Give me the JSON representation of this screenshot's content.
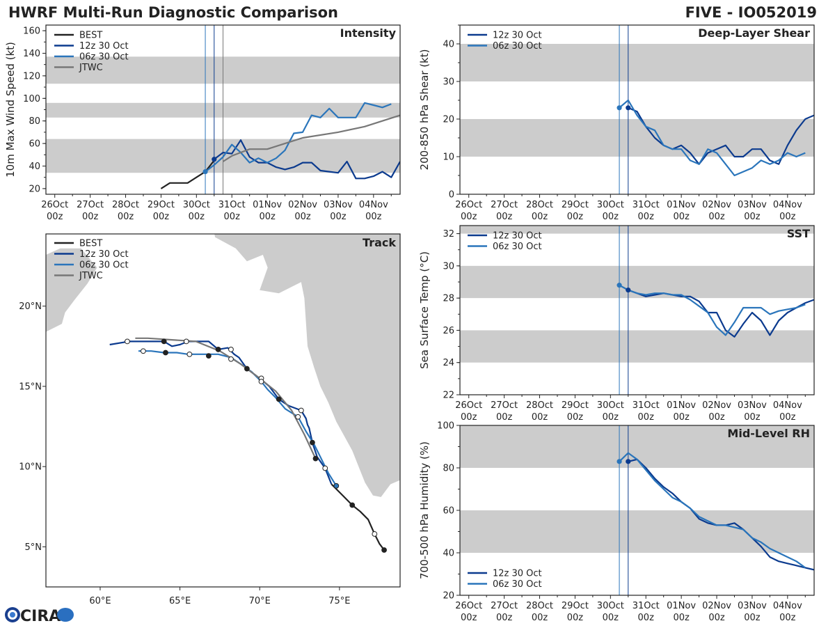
{
  "header": {
    "title": "HWRF Multi-Run Diagnostic Comparison",
    "storm": "FIVE - IO052019"
  },
  "colors": {
    "best": "#222222",
    "run12": "#0b3a8e",
    "run06": "#2a75bb",
    "jtwc": "#777777",
    "band": "#cccccc",
    "land": "#cccccc"
  },
  "logo": {
    "text": "CIRA"
  },
  "time_ticks": [
    "26Oct\n00z",
    "27Oct\n00z",
    "28Oct\n00z",
    "29Oct\n00z",
    "30Oct\n00z",
    "31Oct\n00z",
    "01Nov\n00z",
    "02Nov\n00z",
    "03Nov\n00z",
    "04Nov\n00z"
  ],
  "chart_data": [
    {
      "id": "intensity",
      "type": "line",
      "title": "Intensity",
      "ylabel": "10m Max Wind Speed (kt)",
      "xlabel": "",
      "ylim": [
        15,
        165
      ],
      "yticks": [
        20,
        40,
        60,
        80,
        100,
        120,
        140,
        160
      ],
      "xlim_days": [
        -0.25,
        9.75
      ],
      "bands": [
        [
          34,
          64
        ],
        [
          83,
          96
        ],
        [
          113,
          137
        ]
      ],
      "vlines": [
        {
          "day": 4.25,
          "series": "06z 30 Oct"
        },
        {
          "day": 4.5,
          "series": "12z 30 Oct"
        },
        {
          "day": 4.75,
          "series": "JTWC"
        }
      ],
      "legend": [
        "BEST",
        "12z 30 Oct",
        "06z 30 Oct",
        "JTWC"
      ],
      "series": [
        {
          "name": "BEST",
          "x": [
            3.0,
            3.25,
            3.5,
            3.75,
            4.0,
            4.25,
            4.5
          ],
          "y": [
            20,
            25,
            25,
            25,
            30,
            35,
            45
          ]
        },
        {
          "name": "12z 30 Oct",
          "x": [
            4.5,
            4.75,
            5.0,
            5.25,
            5.5,
            5.75,
            6.0,
            6.25,
            6.5,
            6.75,
            7.0,
            7.25,
            7.5,
            7.75,
            8.0,
            8.25,
            8.5,
            8.75,
            9.0,
            9.25,
            9.5,
            9.75
          ],
          "y": [
            46,
            52,
            51,
            63,
            48,
            43,
            43,
            39,
            37,
            39,
            43,
            43,
            36,
            35,
            34,
            44,
            29,
            29,
            31,
            35,
            30,
            44
          ]
        },
        {
          "name": "06z 30 Oct",
          "x": [
            4.25,
            4.5,
            4.75,
            5.0,
            5.25,
            5.5,
            5.75,
            6.0,
            6.25,
            6.5,
            6.75,
            7.0,
            7.25,
            7.5,
            7.75,
            8.0,
            8.25,
            8.5,
            8.75,
            9.0,
            9.25,
            9.5
          ],
          "y": [
            35,
            41,
            48,
            59,
            52,
            43,
            47,
            43,
            47,
            54,
            69,
            70,
            85,
            83,
            91,
            83,
            83,
            83,
            96,
            94,
            92,
            95
          ]
        },
        {
          "name": "JTWC",
          "x": [
            4.75,
            5.0,
            5.5,
            6.0,
            6.5,
            7.0,
            8.0,
            8.75,
            9.25,
            9.75
          ],
          "y": [
            44,
            49,
            55,
            55,
            60,
            65,
            70,
            75,
            80,
            85
          ]
        }
      ]
    },
    {
      "id": "shear",
      "type": "line",
      "title": "Deep-Layer Shear",
      "ylabel": "200-850 hPa Shear (kt)",
      "xlabel": "",
      "ylim": [
        0,
        45
      ],
      "yticks": [
        0,
        10,
        20,
        30,
        40
      ],
      "xlim_days": [
        -0.25,
        9.75
      ],
      "bands": [
        [
          10,
          20
        ],
        [
          30,
          40
        ]
      ],
      "vlines": [
        {
          "day": 4.25,
          "series": "06z 30 Oct"
        },
        {
          "day": 4.5,
          "series": "12z 30 Oct"
        }
      ],
      "legend": [
        "12z 30 Oct",
        "06z 30 Oct"
      ],
      "series": [
        {
          "name": "12z 30 Oct",
          "x": [
            4.5,
            4.75,
            5.0,
            5.25,
            5.5,
            5.75,
            6.0,
            6.25,
            6.5,
            6.75,
            7.0,
            7.25,
            7.5,
            7.75,
            8.0,
            8.25,
            8.5,
            8.75,
            9.0,
            9.25,
            9.5,
            9.75
          ],
          "y": [
            23,
            22,
            18,
            15,
            13,
            12,
            13,
            11,
            8,
            11,
            12,
            13,
            10,
            10,
            12,
            12,
            9,
            8,
            13,
            17,
            20,
            21
          ]
        },
        {
          "name": "06z 30 Oct",
          "x": [
            4.25,
            4.5,
            4.75,
            5.0,
            5.25,
            5.5,
            5.75,
            6.0,
            6.25,
            6.5,
            6.75,
            7.0,
            7.25,
            7.5,
            7.75,
            8.0,
            8.25,
            8.5,
            8.75,
            9.0,
            9.25,
            9.5
          ],
          "y": [
            23,
            25,
            21,
            18,
            17,
            13,
            12,
            12,
            9,
            8,
            12,
            11,
            8,
            5,
            6,
            7,
            9,
            8,
            9,
            11,
            10,
            11
          ]
        }
      ]
    },
    {
      "id": "sst",
      "type": "line",
      "title": "SST",
      "ylabel": "Sea Surface Temp (°C)",
      "xlabel": "",
      "ylim": [
        22,
        32.5
      ],
      "yticks": [
        22,
        24,
        26,
        28,
        30,
        32
      ],
      "xlim_days": [
        -0.25,
        9.75
      ],
      "bands": [
        [
          24,
          26
        ],
        [
          28,
          30
        ],
        [
          32,
          32.5
        ]
      ],
      "vlines": [
        {
          "day": 4.25,
          "series": "06z 30 Oct"
        },
        {
          "day": 4.5,
          "series": "12z 30 Oct"
        }
      ],
      "legend": [
        "12z 30 Oct",
        "06z 30 Oct"
      ],
      "series": [
        {
          "name": "12z 30 Oct",
          "x": [
            4.5,
            4.75,
            5.0,
            5.25,
            5.5,
            5.75,
            6.0,
            6.25,
            6.5,
            6.75,
            7.0,
            7.25,
            7.5,
            7.75,
            8.0,
            8.25,
            8.5,
            8.75,
            9.0,
            9.25,
            9.5,
            9.75
          ],
          "y": [
            28.5,
            28.3,
            28.1,
            28.2,
            28.3,
            28.2,
            28.1,
            28.1,
            27.8,
            27.1,
            27.1,
            26.0,
            25.6,
            26.4,
            27.1,
            26.6,
            25.7,
            26.6,
            27.1,
            27.4,
            27.7,
            27.9
          ]
        },
        {
          "name": "06z 30 Oct",
          "x": [
            4.25,
            4.5,
            4.75,
            5.0,
            5.25,
            5.5,
            5.75,
            6.0,
            6.25,
            6.5,
            6.75,
            7.0,
            7.25,
            7.5,
            7.75,
            8.0,
            8.25,
            8.5,
            8.75,
            9.0,
            9.25,
            9.5
          ],
          "y": [
            28.8,
            28.5,
            28.3,
            28.2,
            28.3,
            28.3,
            28.2,
            28.2,
            27.9,
            27.5,
            27.1,
            26.2,
            25.7,
            26.5,
            27.4,
            27.4,
            27.4,
            27.0,
            27.2,
            27.3,
            27.4,
            27.6
          ]
        }
      ]
    },
    {
      "id": "rh",
      "type": "line",
      "title": "Mid-Level RH",
      "ylabel": "700-500 hPa Humidity (%)",
      "xlabel": "",
      "ylim": [
        20,
        100
      ],
      "yticks": [
        20,
        40,
        60,
        80,
        100
      ],
      "xlim_days": [
        -0.25,
        9.75
      ],
      "bands": [
        [
          40,
          60
        ],
        [
          80,
          100
        ]
      ],
      "vlines": [
        {
          "day": 4.25,
          "series": "06z 30 Oct"
        },
        {
          "day": 4.5,
          "series": "12z 30 Oct"
        }
      ],
      "legend": [
        "12z 30 Oct",
        "06z 30 Oct"
      ],
      "series": [
        {
          "name": "12z 30 Oct",
          "x": [
            4.5,
            4.75,
            5.0,
            5.25,
            5.5,
            5.75,
            6.0,
            6.25,
            6.5,
            6.75,
            7.0,
            7.25,
            7.5,
            7.75,
            8.0,
            8.25,
            8.5,
            8.75,
            9.0,
            9.25,
            9.5,
            9.75
          ],
          "y": [
            83,
            84,
            80,
            75,
            71,
            68,
            64,
            61,
            56,
            54,
            53,
            53,
            54,
            51,
            47,
            43,
            38,
            36,
            35,
            34,
            33,
            32
          ]
        },
        {
          "name": "06z 30 Oct",
          "x": [
            4.25,
            4.5,
            4.75,
            5.0,
            5.25,
            5.5,
            5.75,
            6.0,
            6.25,
            6.5,
            6.75,
            7.0,
            7.25,
            7.5,
            7.75,
            8.0,
            8.25,
            8.5,
            8.75,
            9.0,
            9.25,
            9.5
          ],
          "y": [
            83,
            87,
            84,
            79,
            74,
            70,
            66,
            64,
            61,
            57,
            55,
            53,
            53,
            52,
            51,
            47,
            45,
            42,
            40,
            38,
            36,
            33
          ]
        }
      ]
    },
    {
      "id": "track",
      "type": "line",
      "title": "Track",
      "xlabel": "",
      "ylabel": "",
      "xlim": [
        56.6,
        78.8
      ],
      "ylim": [
        2.5,
        24.5
      ],
      "xticks": [
        60,
        65,
        70,
        75
      ],
      "xtick_labels": [
        "60°E",
        "65°E",
        "70°E",
        "75°E"
      ],
      "yticks": [
        5,
        10,
        15,
        20
      ],
      "ytick_labels": [
        "5°N",
        "10°N",
        "15°N",
        "20°N"
      ],
      "legend": [
        "BEST",
        "12z 30 Oct",
        "06z 30 Oct",
        "JTWC"
      ],
      "series": [
        {
          "name": "BEST",
          "lon": [
            77.8,
            77.5,
            77.2,
            76.8,
            76.3,
            75.8,
            75.2,
            74.5
          ],
          "lat": [
            4.8,
            5.2,
            5.8,
            6.7,
            7.2,
            7.6,
            8.2,
            8.9
          ],
          "markers": [
            {
              "lon": 77.8,
              "lat": 4.8,
              "filled": true
            },
            {
              "lon": 77.2,
              "lat": 5.8,
              "filled": false
            },
            {
              "lon": 75.8,
              "lat": 7.6,
              "filled": true
            }
          ]
        },
        {
          "name": "12z 30 Oct",
          "lon": [
            74.5,
            74.1,
            73.6,
            73.3,
            73.1,
            73.0,
            72.9,
            72.6,
            71.8,
            71.2,
            70.6,
            70.0,
            69.2,
            68.7,
            68.4,
            68.0,
            67.4,
            66.8,
            66.0,
            65.5,
            65.0,
            64.5,
            64.0,
            63.2,
            62.5,
            61.8,
            60.6
          ],
          "lat": [
            8.9,
            9.9,
            10.6,
            11.5,
            12.4,
            12.6,
            13.0,
            13.5,
            13.8,
            14.2,
            15.0,
            15.5,
            16.1,
            16.8,
            17.0,
            17.4,
            17.3,
            17.8,
            17.8,
            17.8,
            17.6,
            17.5,
            17.8,
            17.8,
            17.8,
            17.8,
            17.6
          ],
          "markers": [
            {
              "lon": 73.3,
              "lat": 11.5,
              "filled": true
            },
            {
              "lon": 71.2,
              "lat": 14.2,
              "filled": true
            },
            {
              "lon": 69.2,
              "lat": 16.1,
              "filled": true
            },
            {
              "lon": 67.4,
              "lat": 17.3,
              "filled": true
            },
            {
              "lon": 64.0,
              "lat": 17.8,
              "filled": true
            },
            {
              "lon": 74.1,
              "lat": 9.9,
              "filled": false
            },
            {
              "lon": 72.6,
              "lat": 13.5,
              "filled": false
            },
            {
              "lon": 70.1,
              "lat": 15.5,
              "filled": false
            },
            {
              "lon": 68.2,
              "lat": 17.3,
              "filled": false
            },
            {
              "lon": 65.4,
              "lat": 17.8,
              "filled": false
            },
            {
              "lon": 61.7,
              "lat": 17.8,
              "filled": false
            }
          ]
        },
        {
          "name": "06z 30 Oct",
          "lon": [
            74.8,
            74.3,
            73.8,
            73.4,
            72.9,
            72.4,
            71.6,
            71.0,
            70.5,
            70.1,
            69.5,
            68.8,
            68.2,
            67.4,
            66.5,
            65.5,
            64.8,
            64.0,
            63.2,
            62.4
          ],
          "lat": [
            8.8,
            9.6,
            10.6,
            11.4,
            12.2,
            13.1,
            13.6,
            14.3,
            14.8,
            15.3,
            15.9,
            16.4,
            16.8,
            17.0,
            17.0,
            17.0,
            17.1,
            17.1,
            17.2,
            17.2
          ],
          "markers": [
            {
              "lon": 74.8,
              "lat": 8.8,
              "filled": true
            },
            {
              "lon": 72.4,
              "lat": 13.1,
              "filled": false
            },
            {
              "lon": 70.1,
              "lat": 15.3,
              "filled": false
            },
            {
              "lon": 68.2,
              "lat": 16.7,
              "filled": false
            },
            {
              "lon": 65.6,
              "lat": 17.0,
              "filled": false
            },
            {
              "lon": 62.7,
              "lat": 17.2,
              "filled": false
            },
            {
              "lon": 66.8,
              "lat": 16.9,
              "filled": true
            },
            {
              "lon": 64.1,
              "lat": 17.1,
              "filled": true
            }
          ]
        },
        {
          "name": "JTWC",
          "lon": [
            73.5,
            72.8,
            72.0,
            71.0,
            70.0,
            68.8,
            67.5,
            66.0,
            64.5,
            63.0,
            62.2
          ],
          "lat": [
            10.5,
            12.0,
            13.5,
            14.7,
            15.5,
            16.4,
            17.2,
            17.8,
            17.9,
            18.0,
            18.0
          ],
          "markers": [
            {
              "lon": 73.5,
              "lat": 10.5,
              "filled": true
            }
          ]
        }
      ]
    }
  ]
}
